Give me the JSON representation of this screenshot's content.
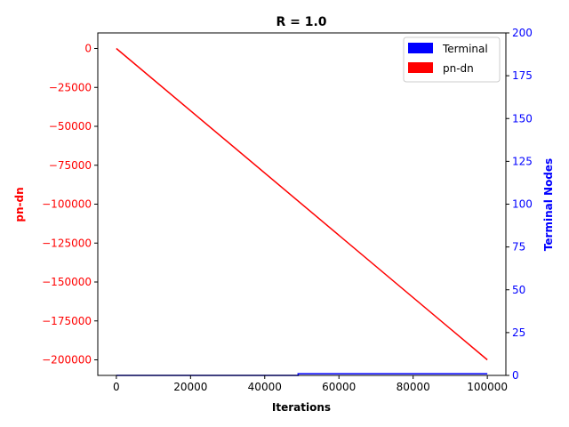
{
  "chart_data": {
    "type": "line",
    "title": "R = 1.0",
    "xlabel": "Iterations",
    "ylabel_left": "pn-dn",
    "ylabel_right": "Terminal Nodes",
    "xlim": [
      -5000,
      105000
    ],
    "ylim_left": [
      -210000,
      10000
    ],
    "ylim_right": [
      0,
      200
    ],
    "x_ticks": [
      0,
      20000,
      40000,
      60000,
      80000,
      100000
    ],
    "y_left_ticks": [
      0,
      -25000,
      -50000,
      -75000,
      -100000,
      -125000,
      -150000,
      -175000,
      -200000
    ],
    "y_right_ticks": [
      0,
      25,
      50,
      75,
      100,
      125,
      150,
      175,
      200
    ],
    "grid": false,
    "legend_position": "top-right",
    "legend": [
      "Terminal",
      "pn-dn"
    ],
    "series": [
      {
        "name": "pn-dn",
        "axis": "left",
        "color": "#ff0000",
        "x": [
          0,
          100000
        ],
        "y": [
          0,
          -200000
        ]
      },
      {
        "name": "Terminal",
        "axis": "right",
        "color": "#0000ff",
        "x": [
          0,
          49000,
          49000,
          100000
        ],
        "y": [
          0,
          0,
          1,
          1
        ]
      }
    ]
  }
}
